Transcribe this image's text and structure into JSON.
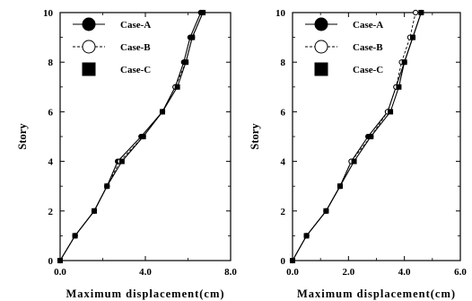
{
  "colors": {
    "line": "#000000",
    "marker_fill": "#000000",
    "open_marker_fill": "#ffffff",
    "background": "#ffffff"
  },
  "chart_data": [
    {
      "type": "line",
      "title": "",
      "xlabel": "Maximum displacement(cm)",
      "ylabel": "Story",
      "xlim": [
        0,
        8
      ],
      "ylim": [
        0,
        10
      ],
      "x_ticks": [
        "0.0",
        "4.0",
        "8.0"
      ],
      "y_ticks": [
        "0",
        "2",
        "4",
        "6",
        "8",
        "10"
      ],
      "legend_placement": "top-left",
      "grid": false,
      "series": [
        {
          "name": "Case-A",
          "marker": "filled-circle",
          "line_style": "solid",
          "points": [
            [
              0,
              0
            ],
            [
              0.7,
              1
            ],
            [
              1.6,
              2
            ],
            [
              2.2,
              3
            ],
            [
              2.7,
              4
            ],
            [
              3.8,
              5
            ],
            [
              4.8,
              6
            ],
            [
              5.4,
              7
            ],
            [
              5.8,
              8
            ],
            [
              6.1,
              9
            ],
            [
              6.6,
              10
            ]
          ]
        },
        {
          "name": "Case-B",
          "marker": "open-circle",
          "line_style": "dashed",
          "points": [
            [
              0,
              0
            ],
            [
              0.7,
              1
            ],
            [
              1.6,
              2
            ],
            [
              2.2,
              3
            ],
            [
              2.8,
              4
            ],
            [
              3.9,
              5
            ],
            [
              4.8,
              6
            ],
            [
              5.4,
              7
            ],
            [
              5.9,
              8
            ],
            [
              6.2,
              9
            ],
            [
              6.7,
              10
            ]
          ]
        },
        {
          "name": "Case-C",
          "marker": "filled-square",
          "line_style": "solid",
          "points": [
            [
              0,
              0
            ],
            [
              0.7,
              1
            ],
            [
              1.6,
              2
            ],
            [
              2.2,
              3
            ],
            [
              2.9,
              4
            ],
            [
              3.9,
              5
            ],
            [
              4.8,
              6
            ],
            [
              5.5,
              7
            ],
            [
              5.9,
              8
            ],
            [
              6.2,
              9
            ],
            [
              6.7,
              10
            ]
          ]
        }
      ]
    },
    {
      "type": "line",
      "title": "",
      "xlabel": "Maximum displacement(cm)",
      "ylabel": "Story",
      "xlim": [
        0,
        6
      ],
      "ylim": [
        0,
        10
      ],
      "x_ticks": [
        "0.0",
        "2.0",
        "4.0",
        "6.0"
      ],
      "y_ticks": [
        "0",
        "2",
        "4",
        "6",
        "8",
        "10"
      ],
      "legend_placement": "top-left",
      "grid": false,
      "series": [
        {
          "name": "Case-A",
          "marker": "filled-circle",
          "line_style": "solid",
          "points": [
            [
              0,
              0
            ],
            [
              0.5,
              1
            ],
            [
              1.2,
              2
            ],
            [
              1.7,
              3
            ],
            [
              2.1,
              4
            ],
            [
              2.7,
              5
            ],
            [
              3.4,
              6
            ],
            [
              3.7,
              7
            ],
            [
              4.0,
              8
            ],
            [
              4.3,
              9
            ],
            [
              4.6,
              10
            ]
          ]
        },
        {
          "name": "Case-B",
          "marker": "open-circle",
          "line_style": "dashed",
          "points": [
            [
              0,
              0
            ],
            [
              0.5,
              1
            ],
            [
              1.2,
              2
            ],
            [
              1.7,
              3
            ],
            [
              2.1,
              4
            ],
            [
              2.8,
              5
            ],
            [
              3.4,
              6
            ],
            [
              3.7,
              7
            ],
            [
              3.9,
              8
            ],
            [
              4.2,
              9
            ],
            [
              4.4,
              10
            ]
          ]
        },
        {
          "name": "Case-C",
          "marker": "filled-square",
          "line_style": "solid",
          "points": [
            [
              0,
              0
            ],
            [
              0.5,
              1
            ],
            [
              1.2,
              2
            ],
            [
              1.7,
              3
            ],
            [
              2.2,
              4
            ],
            [
              2.8,
              5
            ],
            [
              3.5,
              6
            ],
            [
              3.8,
              7
            ],
            [
              4.0,
              8
            ],
            [
              4.3,
              9
            ],
            [
              4.6,
              10
            ]
          ]
        }
      ]
    }
  ]
}
